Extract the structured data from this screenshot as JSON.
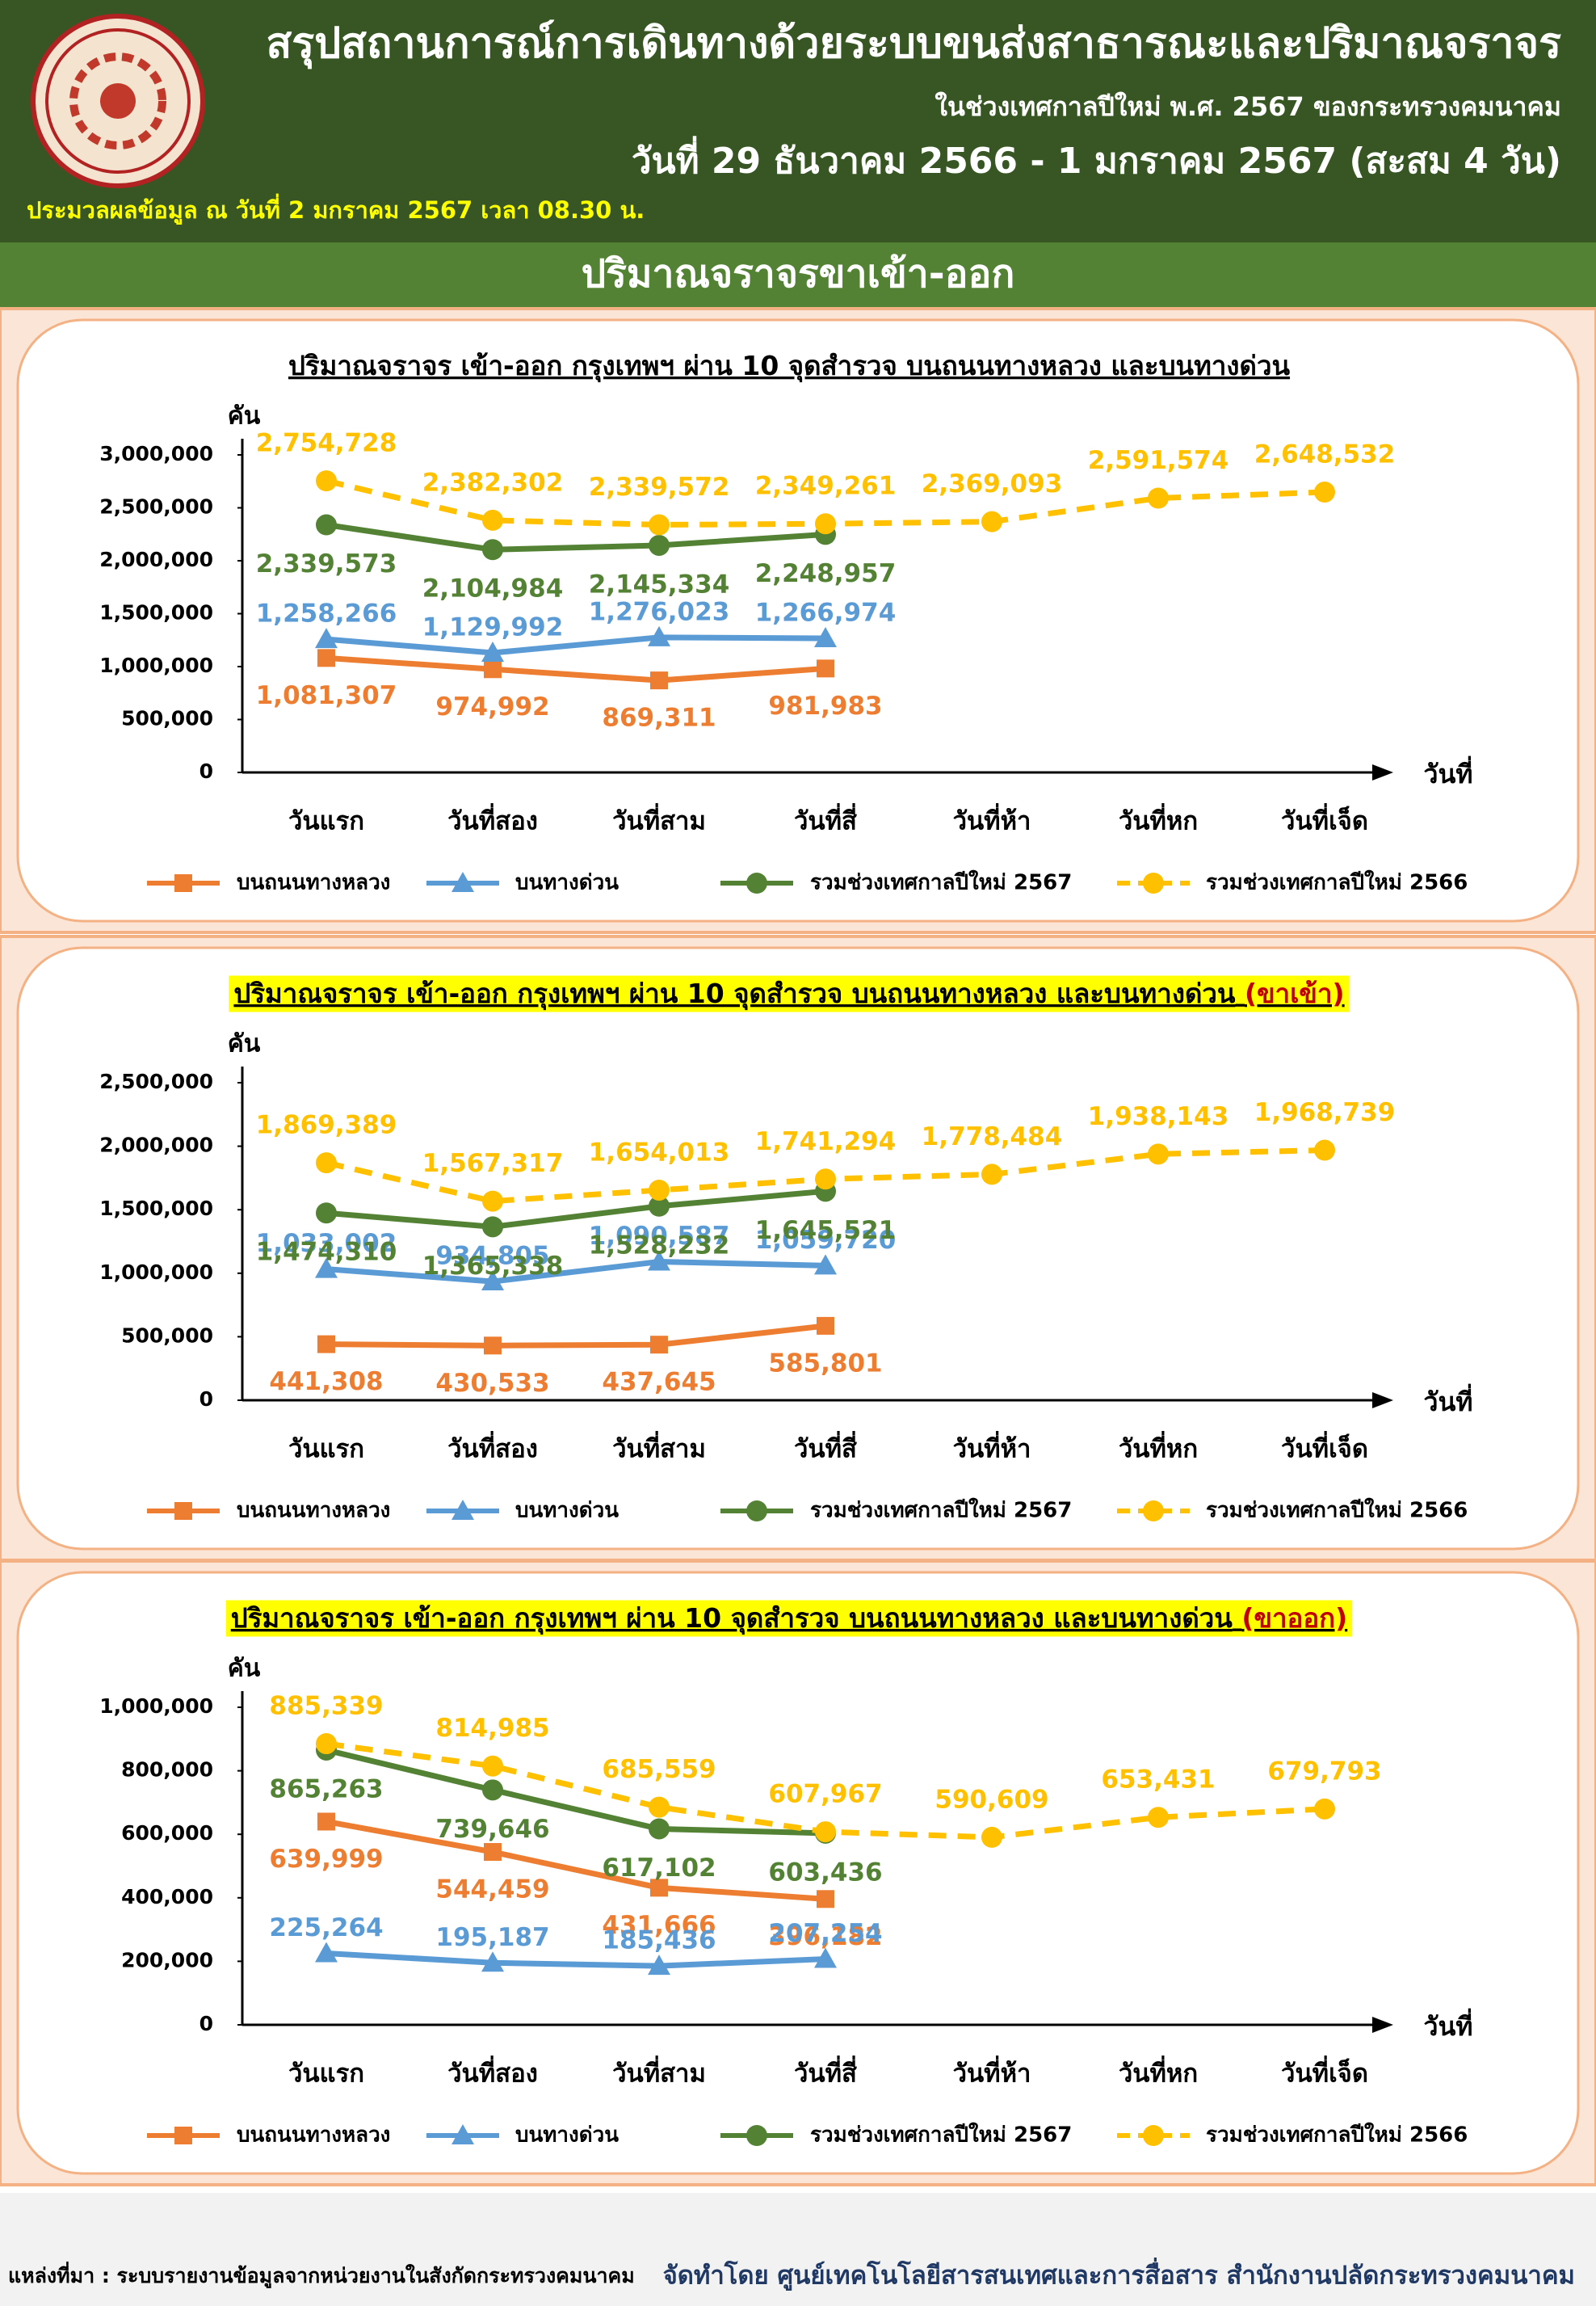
{
  "header": {
    "title": "สรุปสถานการณ์การเดินทางด้วยระบบขนส่งสาธารณะและปริมาณจราจร",
    "subtitle": "ในช่วงเทศกาลปีใหม่ พ.ศ. 2567 ของกระทรวงคมนาคม",
    "dates": "วันที่ 29 ธันวาคม 2566 - 1 มกราคม 2567 (สะสม 4 วัน)",
    "note": "ประมวลผลข้อมูล ณ วันที่ 2 มกราคม 2567 เวลา 08.30 น."
  },
  "section_title": "ปริมาณจราจรขาเข้า-ออก",
  "footer": {
    "source": "แหล่งที่มา : ระบบรายงานข้อมูลจากหน่วยงานในสังกัดกระทรวงคมนาคม",
    "credit": "จัดทำโดย ศูนย์เทคโนโลยีสารสนเทศและการสื่อสาร สำนักงานปลัดกระทรวงคมนาคม"
  },
  "chart_data": [
    {
      "type": "line",
      "title": "ปริมาณจราจร เข้า-ออก กรุงเทพฯ ผ่าน 10 จุดสำรวจ บนถนนทางหลวง และบนทางด่วน",
      "y_label": "คัน",
      "x_label": "วันที่",
      "categories": [
        "วันแรก",
        "วันที่สอง",
        "วันที่สาม",
        "วันที่สี่",
        "วันที่ห้า",
        "วันที่หก",
        "วันที่เจ็ด"
      ],
      "ylim": [
        0,
        3000000
      ],
      "yticks": [
        0,
        {
          "value": 500000,
          "label": "500,000"
        },
        {
          "value": 1000000,
          "label": "1,000,000"
        },
        {
          "value": 1500000,
          "label": "1,500,000"
        },
        {
          "value": 2000000,
          "label": "2,000,000"
        },
        {
          "value": 2500000,
          "label": "2,500,000"
        },
        {
          "value": 3000000,
          "label": "3,000,000"
        }
      ],
      "series": [
        {
          "name": "บนถนนทางหลวง",
          "color": "#ed7d31",
          "marker": "square",
          "values": [
            1081307,
            974992,
            869311,
            981983,
            null,
            null,
            null
          ],
          "value_labels": [
            "1,081,307",
            "974,992",
            "869,311",
            "981,983",
            null,
            null,
            null
          ]
        },
        {
          "name": "บนทางด่วน",
          "color": "#5b9bd5",
          "marker": "triangle",
          "values": [
            1258266,
            1129992,
            1276023,
            1266974,
            null,
            null,
            null
          ],
          "value_labels": [
            "1,258,266",
            "1,129,992",
            "1,276,023",
            "1,266,974",
            null,
            null,
            null
          ]
        },
        {
          "name": "รวมช่วงเทศกาลปีใหม่ 2567",
          "color": "#548235",
          "marker": "circle",
          "values": [
            2339573,
            2104984,
            2145334,
            2248957,
            null,
            null,
            null
          ],
          "value_labels": [
            "2,339,573",
            "2,104,984",
            "2,145,334",
            "2,248,957",
            null,
            null,
            null
          ]
        },
        {
          "name": "รวมช่วงเทศกาลปีใหม่ 2566",
          "color": "#ffc000",
          "marker": "circle",
          "dashed": true,
          "values": [
            2754728,
            2382302,
            2339572,
            2349261,
            2369093,
            2591574,
            2648532
          ],
          "value_labels": [
            "2,754,728",
            "2,382,302",
            "2,339,572",
            "2,349,261",
            "2,369,093",
            "2,591,574",
            "2,648,532"
          ]
        }
      ]
    },
    {
      "type": "line",
      "title": "ปริมาณจราจร เข้า-ออก กรุงเทพฯ ผ่าน 10 จุดสำรวจ บนถนนทางหลวง และบนทางด่วน",
      "title_suffix": "(ขาเข้า)",
      "title_background": "#ffff00",
      "y_label": "คัน",
      "x_label": "วันที่",
      "categories": [
        "วันแรก",
        "วันที่สอง",
        "วันที่สาม",
        "วันที่สี่",
        "วันที่ห้า",
        "วันที่หก",
        "วันที่เจ็ด"
      ],
      "ylim": [
        0,
        2500000
      ],
      "yticks": [
        0,
        {
          "value": 500000,
          "label": "500,000"
        },
        {
          "value": 1000000,
          "label": "1,000,000"
        },
        {
          "value": 1500000,
          "label": "1,500,000"
        },
        {
          "value": 2000000,
          "label": "2,000,000"
        },
        {
          "value": 2500000,
          "label": "2,500,000"
        }
      ],
      "series": [
        {
          "name": "บนถนนทางหลวง",
          "color": "#ed7d31",
          "marker": "square",
          "values": [
            441308,
            430533,
            437645,
            585801,
            null,
            null,
            null
          ],
          "value_labels": [
            "441,308",
            "430,533",
            "437,645",
            "585,801",
            null,
            null,
            null
          ]
        },
        {
          "name": "บนทางด่วน",
          "color": "#5b9bd5",
          "marker": "triangle",
          "values": [
            1033002,
            934805,
            1090587,
            1059720,
            null,
            null,
            null
          ],
          "value_labels": [
            "1,033,002",
            "934,805",
            "1,090,587",
            "1,059,720",
            null,
            null,
            null
          ]
        },
        {
          "name": "รวมช่วงเทศกาลปีใหม่ 2567",
          "color": "#548235",
          "marker": "circle",
          "values": [
            1474310,
            1365338,
            1528232,
            1645521,
            null,
            null,
            null
          ],
          "value_labels": [
            "1,474,310",
            "1,365,338",
            "1,528,232",
            "1,645,521",
            null,
            null,
            null
          ]
        },
        {
          "name": "รวมช่วงเทศกาลปีใหม่ 2566",
          "color": "#ffc000",
          "marker": "circle",
          "dashed": true,
          "values": [
            1869389,
            1567317,
            1654013,
            1741294,
            1778484,
            1938143,
            1968739
          ],
          "value_labels": [
            "1,869,389",
            "1,567,317",
            "1,654,013",
            "1,741,294",
            "1,778,484",
            "1,938,143",
            "1,968,739"
          ]
        }
      ]
    },
    {
      "type": "line",
      "title": "ปริมาณจราจร เข้า-ออก กรุงเทพฯ ผ่าน 10 จุดสำรวจ บนถนนทางหลวง และบนทางด่วน",
      "title_suffix": "(ขาออก)",
      "title_background": "#ffff00",
      "y_label": "คัน",
      "x_label": "วันที่",
      "categories": [
        "วันแรก",
        "วันที่สอง",
        "วันที่สาม",
        "วันที่สี่",
        "วันที่ห้า",
        "วันที่หก",
        "วันที่เจ็ด"
      ],
      "ylim": [
        0,
        1000000
      ],
      "yticks": [
        0,
        {
          "value": 200000,
          "label": "200,000"
        },
        {
          "value": 400000,
          "label": "400,000"
        },
        {
          "value": 600000,
          "label": "600,000"
        },
        {
          "value": 800000,
          "label": "800,000"
        },
        {
          "value": 1000000,
          "label": "1,000,000"
        }
      ],
      "series": [
        {
          "name": "บนถนนทางหลวง",
          "color": "#ed7d31",
          "marker": "square",
          "values": [
            639999,
            544459,
            431666,
            396182,
            null,
            null,
            null
          ],
          "value_labels": [
            "639,999",
            "544,459",
            "431,666",
            "396,182",
            null,
            null,
            null
          ]
        },
        {
          "name": "บนทางด่วน",
          "color": "#5b9bd5",
          "marker": "triangle",
          "values": [
            225264,
            195187,
            185436,
            207254,
            null,
            null,
            null
          ],
          "value_labels": [
            "225,264",
            "195,187",
            "185,436",
            "207,254",
            null,
            null,
            null
          ]
        },
        {
          "name": "รวมช่วงเทศกาลปีใหม่ 2567",
          "color": "#548235",
          "marker": "circle",
          "values": [
            865263,
            739646,
            617102,
            603436,
            null,
            null,
            null
          ],
          "value_labels": [
            "865,263",
            "739,646",
            "617,102",
            "603,436",
            null,
            null,
            null
          ]
        },
        {
          "name": "รวมช่วงเทศกาลปีใหม่ 2566",
          "color": "#ffc000",
          "marker": "circle",
          "dashed": true,
          "values": [
            885339,
            814985,
            685559,
            607967,
            590609,
            653431,
            679793
          ],
          "value_labels": [
            "885,339",
            "814,985",
            "685,559",
            "607,967",
            "590,609",
            "653,431",
            "679,793"
          ]
        }
      ]
    }
  ]
}
